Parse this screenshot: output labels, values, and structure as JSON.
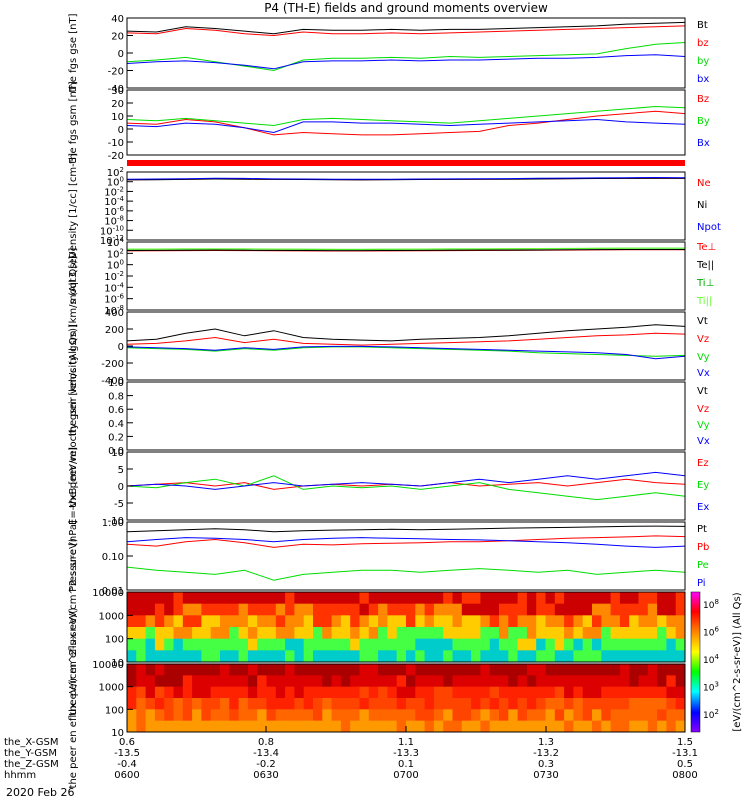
{
  "title": "P4 (TH-E) fields and ground moments overview",
  "date_label": "2020 Feb 26",
  "chart_data": [
    {
      "type": "line",
      "ylabel": "the fgs gse [nT]",
      "yticks": [
        "40",
        "20",
        "0",
        "-20",
        "-40"
      ],
      "ylim": [
        -40,
        40
      ],
      "series": [
        {
          "name": "Bt",
          "color": "#000000",
          "values": [
            25,
            24,
            30,
            28,
            25,
            22,
            27,
            26,
            26,
            27,
            26,
            27,
            27,
            28,
            29,
            30,
            31,
            33,
            34,
            35
          ]
        },
        {
          "name": "bz",
          "color": "#ff0000",
          "values": [
            23,
            22,
            28,
            26,
            22,
            20,
            24,
            22,
            22,
            23,
            22,
            23,
            24,
            25,
            26,
            27,
            28,
            29,
            30,
            31
          ]
        },
        {
          "name": "by",
          "color": "#00dd00",
          "values": [
            -10,
            -8,
            -5,
            -10,
            -15,
            -20,
            -8,
            -6,
            -6,
            -5,
            -6,
            -4,
            -5,
            -4,
            -3,
            -2,
            -1,
            5,
            10,
            12
          ]
        },
        {
          "name": "bx",
          "color": "#0000ff",
          "values": [
            -12,
            -10,
            -9,
            -11,
            -14,
            -18,
            -10,
            -9,
            -9,
            -8,
            -9,
            -8,
            -8,
            -7,
            -6,
            -6,
            -5,
            -3,
            -2,
            -4
          ]
        }
      ]
    },
    {
      "type": "line",
      "ylabel": "the fgs gsm [nT]",
      "yticks": [
        "30",
        "20",
        "10",
        "0",
        "-10",
        "-20"
      ],
      "ylim": [
        -25,
        30
      ],
      "series": [
        {
          "name": "Bz",
          "color": "#ff0000",
          "values": [
            2,
            1,
            5,
            3,
            -2,
            -8,
            -6,
            -7,
            -8,
            -8,
            -7,
            -6,
            -5,
            0,
            2,
            5,
            8,
            10,
            12,
            10
          ]
        },
        {
          "name": "By",
          "color": "#00dd00",
          "values": [
            5,
            4,
            6,
            4,
            2,
            0,
            5,
            6,
            5,
            4,
            3,
            2,
            4,
            6,
            8,
            10,
            12,
            14,
            16,
            15
          ]
        },
        {
          "name": "Bx",
          "color": "#0000ff",
          "values": [
            0,
            -1,
            2,
            1,
            -2,
            -6,
            3,
            3,
            2,
            2,
            1,
            0,
            1,
            2,
            3,
            4,
            5,
            3,
            2,
            1
          ]
        }
      ]
    },
    {
      "type": "line",
      "ylabel": "Density [1/cc] [cm-3]",
      "yticks": [
        "10^2",
        "10^0",
        "10^-2",
        "10^-4",
        "10^-6",
        "10^-8",
        "10^-10",
        "10^-12"
      ],
      "scale": "log",
      "ylim": [
        1e-12,
        1000.0
      ],
      "series": [
        {
          "name": "Ne",
          "color": "#ff0000",
          "values": [
            20,
            22,
            25,
            30,
            28,
            25,
            24,
            22,
            20,
            22,
            24,
            25,
            26,
            28,
            30,
            35,
            38,
            40,
            42,
            40
          ]
        },
        {
          "name": "Ni",
          "color": "#000000",
          "values": [
            18,
            20,
            23,
            28,
            26,
            23,
            22,
            20,
            18,
            20,
            22,
            23,
            24,
            26,
            28,
            33,
            36,
            38,
            40,
            38
          ]
        },
        {
          "name": "Npot",
          "color": "#0000ff",
          "values": [
            25,
            28,
            32,
            40,
            38,
            30,
            28,
            26,
            24,
            26,
            28,
            30,
            32,
            35,
            40,
            45,
            50,
            55,
            60,
            55
          ]
        }
      ]
    },
    {
      "type": "line",
      "ylabel": "moqt3 [eV]",
      "yticks": [
        "10^4",
        "10^2",
        "10^0",
        "10^-2",
        "10^-4",
        "10^-6",
        "10^-8"
      ],
      "scale": "log",
      "ylim": [
        1e-09,
        100000.0
      ],
      "series": [
        {
          "name": "Te⊥",
          "color": "#ff0000",
          "values": [
            1500,
            1600,
            1700,
            1800,
            1700,
            1600,
            1500,
            1400,
            1400,
            1500,
            1600,
            1700,
            1800,
            1900,
            2000,
            2200,
            2400,
            2500,
            2600,
            2500
          ]
        },
        {
          "name": "Te||",
          "color": "#000000",
          "values": [
            1800,
            1900,
            2000,
            2100,
            2000,
            1900,
            1800,
            1700,
            1700,
            1800,
            1900,
            2000,
            2100,
            2200,
            2300,
            2500,
            2700,
            2800,
            2900,
            2800
          ]
        },
        {
          "name": "Ti⊥",
          "color": "#00aa00",
          "values": [
            3000,
            3200,
            3400,
            3600,
            3400,
            3200,
            3000,
            2800,
            2800,
            3000,
            3200,
            3400,
            3600,
            3800,
            4000,
            4400,
            4800,
            5000,
            5200,
            5000
          ]
        },
        {
          "name": "Ti||",
          "color": "#66ff33",
          "values": [
            3500,
            3700,
            3900,
            4100,
            3900,
            3700,
            3500,
            3300,
            3300,
            3500,
            3700,
            3900,
            4100,
            4300,
            4500,
            4900,
            5300,
            5500,
            5700,
            5500
          ]
        }
      ]
    },
    {
      "type": "line",
      "ylabel": "the peir velocity gsm [km/s (All Qs)]",
      "yticks": [
        "400",
        "200",
        "0",
        "-200",
        "-400"
      ],
      "ylim": [
        -400,
        400
      ],
      "series": [
        {
          "name": "Vt",
          "color": "#000000",
          "values": [
            60,
            80,
            150,
            200,
            120,
            180,
            100,
            80,
            70,
            60,
            80,
            90,
            100,
            120,
            150,
            180,
            200,
            220,
            250,
            230
          ]
        },
        {
          "name": "Vz",
          "color": "#ff0000",
          "values": [
            20,
            30,
            60,
            100,
            40,
            80,
            30,
            20,
            10,
            20,
            30,
            40,
            50,
            60,
            80,
            100,
            120,
            130,
            150,
            140
          ]
        },
        {
          "name": "Vy",
          "color": "#00dd00",
          "values": [
            -20,
            -30,
            -40,
            -60,
            -30,
            -50,
            -20,
            -10,
            -10,
            -20,
            -30,
            -40,
            -50,
            -60,
            -80,
            -90,
            -100,
            -110,
            -120,
            -110
          ]
        },
        {
          "name": "Vx",
          "color": "#0000ff",
          "values": [
            -10,
            -20,
            -30,
            -50,
            -20,
            -40,
            -10,
            -5,
            -5,
            -10,
            -20,
            -30,
            -40,
            -50,
            -60,
            -70,
            -80,
            -100,
            -150,
            -120
          ]
        }
      ]
    },
    {
      "type": "line",
      "ylabel": "the peer velocity gsm [km/s (All Qs)]",
      "yticks": [
        "1.0",
        "0.8",
        "0.6",
        "0.4",
        "0.2",
        "0.0"
      ],
      "ylim": [
        0,
        1
      ],
      "series": [
        {
          "name": "Vt",
          "color": "#000000",
          "values": []
        },
        {
          "name": "Vz",
          "color": "#ff0000",
          "values": []
        },
        {
          "name": "Vy",
          "color": "#00dd00",
          "values": []
        },
        {
          "name": "Vx",
          "color": "#0000ff",
          "values": []
        }
      ]
    },
    {
      "type": "line",
      "ylabel": "E=-VxB [mV/m]",
      "yticks": [
        "10",
        "5",
        "0",
        "-5",
        "-10"
      ],
      "ylim": [
        -10,
        10
      ],
      "series": [
        {
          "name": "Ez",
          "color": "#ff0000",
          "values": [
            0,
            0.5,
            1,
            0,
            1,
            -1,
            0,
            0.5,
            0,
            0.5,
            0,
            1,
            0,
            0.5,
            1,
            0,
            1,
            2,
            1,
            0.5
          ]
        },
        {
          "name": "Ey",
          "color": "#00dd00",
          "values": [
            0,
            -0.5,
            1,
            2,
            0,
            3,
            -1,
            0,
            -0.5,
            0,
            -1,
            0,
            1,
            -1,
            -2,
            -3,
            -4,
            -3,
            -2,
            -3
          ]
        },
        {
          "name": "Ex",
          "color": "#0000ff",
          "values": [
            0,
            0.5,
            0,
            -1,
            0,
            1,
            0,
            0.5,
            1,
            0.5,
            0,
            1,
            2,
            1,
            2,
            3,
            2,
            3,
            4,
            3
          ]
        }
      ]
    },
    {
      "type": "line",
      "ylabel": "Pressure [nPa]",
      "yticks": [
        "1.00",
        "0.10",
        "0.01"
      ],
      "scale": "log",
      "ylim": [
        0.01,
        1.2
      ],
      "series": [
        {
          "name": "Pt",
          "color": "#000000",
          "values": [
            0.6,
            0.65,
            0.7,
            0.75,
            0.7,
            0.6,
            0.65,
            0.68,
            0.7,
            0.72,
            0.7,
            0.72,
            0.75,
            0.78,
            0.8,
            0.82,
            0.85,
            0.88,
            0.9,
            0.88
          ]
        },
        {
          "name": "Pb",
          "color": "#ff0000",
          "values": [
            0.25,
            0.22,
            0.3,
            0.35,
            0.28,
            0.2,
            0.25,
            0.24,
            0.26,
            0.27,
            0.28,
            0.3,
            0.3,
            0.32,
            0.35,
            0.38,
            0.4,
            0.42,
            0.45,
            0.43
          ]
        },
        {
          "name": "Pe",
          "color": "#00dd00",
          "values": [
            0.05,
            0.04,
            0.035,
            0.03,
            0.04,
            0.02,
            0.03,
            0.035,
            0.04,
            0.04,
            0.035,
            0.04,
            0.045,
            0.04,
            0.035,
            0.04,
            0.03,
            0.035,
            0.04,
            0.035
          ]
        },
        {
          "name": "Pi",
          "color": "#0000ff",
          "values": [
            0.3,
            0.35,
            0.4,
            0.38,
            0.35,
            0.3,
            0.35,
            0.38,
            0.4,
            0.38,
            0.37,
            0.35,
            0.34,
            0.32,
            0.3,
            0.28,
            0.25,
            0.22,
            0.2,
            0.22
          ]
        }
      ]
    },
    {
      "type": "heatmap",
      "ylabel": "the peir en eflux eV/(cm^2-s-sr-eV)",
      "yticks": [
        "10000",
        "1000",
        "100",
        "10"
      ]
    },
    {
      "type": "heatmap",
      "ylabel": "the peer en eflux eV/(cm^2-s-sr-eV)",
      "yticks": [
        "10000",
        "1000",
        "100",
        "10"
      ]
    }
  ],
  "colorbar": {
    "label": "[eV/(cm^2-s-sr-eV)] (All Qs)",
    "ticks": [
      "10^8",
      "10^6",
      "10^4",
      "10^3",
      "10^2"
    ],
    "colors": [
      "#ff00ff",
      "#ff0000",
      "#ff8800",
      "#ffff00",
      "#00ff00",
      "#00ffff",
      "#0000ff",
      "#8800ff"
    ]
  },
  "x_axis": {
    "rows": [
      {
        "label": "the_X-GSM",
        "values": [
          "0.6",
          "0.8",
          "1.1",
          "1.3",
          "1.5"
        ]
      },
      {
        "label": "the_Y-GSM",
        "values": [
          "-13.5",
          "-13.4",
          "-13.3",
          "-13.2",
          "-13.1"
        ]
      },
      {
        "label": "the_Z-GSM",
        "values": [
          "-0.4",
          "-0.2",
          "0.1",
          "0.3",
          "0.5"
        ]
      },
      {
        "label": "hhmm",
        "values": [
          "0600",
          "0630",
          "0700",
          "0730",
          "0800"
        ]
      }
    ]
  }
}
